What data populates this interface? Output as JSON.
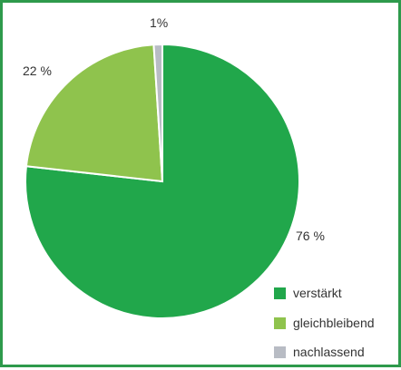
{
  "chart_data": {
    "type": "pie",
    "slices": [
      {
        "name": "verstärkt",
        "value": 76,
        "label": "76 %",
        "color": "#21a74b"
      },
      {
        "name": "gleichbleibend",
        "value": 22,
        "label": "22 %",
        "color": "#8fc34d"
      },
      {
        "name": "nachlassend",
        "value": 1,
        "label": "1%",
        "color": "#b8bcc4"
      }
    ],
    "legend_position": "bottom-right",
    "start": "top",
    "direction": "clockwise"
  },
  "colors": {
    "frame_border": "#2e9a4c",
    "slice_separator": "#ffffff"
  }
}
